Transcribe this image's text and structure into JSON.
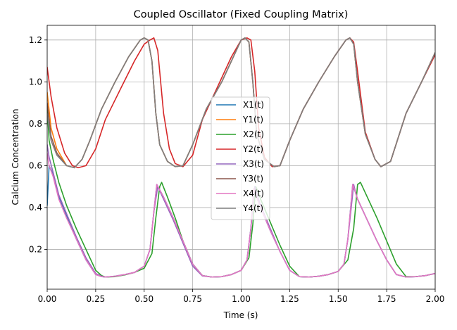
{
  "chart_data": {
    "type": "line",
    "title": "Coupled Oscillator (Fixed Coupling Matrix)",
    "xlabel": "Time (s)",
    "ylabel": "Calcium Concentration",
    "xlim": [
      0,
      2.0
    ],
    "ylim": [
      0.01,
      1.27
    ],
    "xticks": [
      0.0,
      0.25,
      0.5,
      0.75,
      1.0,
      1.25,
      1.5,
      1.75,
      2.0
    ],
    "xtick_labels": [
      "0.00",
      "0.25",
      "0.50",
      "0.75",
      "1.00",
      "1.25",
      "1.50",
      "1.75",
      "2.00"
    ],
    "yticks": [
      0.2,
      0.4,
      0.6,
      0.8,
      1.0,
      1.2
    ],
    "ytick_labels": [
      "0.2",
      "0.4",
      "0.6",
      "0.8",
      "1.0",
      "1.2"
    ],
    "grid": true,
    "legend_position": "center",
    "series": [
      {
        "name": "X1(t)",
        "color": "#1f77b4",
        "x": [
          0,
          0.01,
          0.03,
          0.06,
          0.1,
          0.15,
          0.2,
          0.25,
          0.28,
          0.3,
          0.35,
          0.4,
          0.45,
          0.5,
          0.53,
          0.55,
          0.565,
          0.6,
          0.65,
          0.7,
          0.75,
          0.8,
          0.85,
          0.9,
          0.95,
          1.0,
          1.03,
          1.05,
          1.065,
          1.075,
          1.1,
          1.15,
          1.2,
          1.25,
          1.3,
          1.35,
          1.4,
          1.45,
          1.5,
          1.53,
          1.55,
          1.575,
          1.59,
          1.6,
          1.65,
          1.7,
          1.75,
          1.8,
          1.85,
          1.9,
          1.95,
          2.0
        ],
        "y": [
          0.41,
          0.6,
          0.56,
          0.45,
          0.36,
          0.25,
          0.15,
          0.08,
          0.07,
          0.068,
          0.072,
          0.08,
          0.09,
          0.12,
          0.2,
          0.38,
          0.51,
          0.45,
          0.35,
          0.24,
          0.13,
          0.075,
          0.068,
          0.07,
          0.08,
          0.1,
          0.15,
          0.3,
          0.49,
          0.46,
          0.4,
          0.29,
          0.19,
          0.1,
          0.07,
          0.068,
          0.072,
          0.08,
          0.095,
          0.13,
          0.25,
          0.51,
          0.47,
          0.44,
          0.34,
          0.24,
          0.15,
          0.08,
          0.068,
          0.07,
          0.075,
          0.085
        ]
      },
      {
        "name": "Y1(t)",
        "color": "#ff7f0e",
        "x": [
          0,
          0.02,
          0.05,
          0.1,
          0.14,
          0.18,
          0.22,
          0.28,
          0.35,
          0.42,
          0.48,
          0.5,
          0.52,
          0.54,
          0.56,
          0.58,
          0.62,
          0.66,
          0.7,
          0.75,
          0.82,
          0.9,
          0.96,
          1.0,
          1.02,
          1.04,
          1.06,
          1.08,
          1.12,
          1.17,
          1.2,
          1.25,
          1.32,
          1.4,
          1.48,
          1.54,
          1.56,
          1.58,
          1.6,
          1.64,
          1.69,
          1.72,
          1.77,
          1.85,
          1.93,
          2.0
        ],
        "y": [
          0.95,
          0.78,
          0.68,
          0.6,
          0.59,
          0.63,
          0.72,
          0.87,
          1.0,
          1.12,
          1.2,
          1.21,
          1.2,
          1.1,
          0.85,
          0.7,
          0.62,
          0.595,
          0.6,
          0.7,
          0.87,
          1.0,
          1.12,
          1.2,
          1.21,
          1.19,
          1.0,
          0.75,
          0.63,
          0.595,
          0.6,
          0.72,
          0.87,
          1.0,
          1.12,
          1.2,
          1.21,
          1.18,
          1.0,
          0.75,
          0.63,
          0.595,
          0.62,
          0.85,
          1.0,
          1.14
        ]
      },
      {
        "name": "X2(t)",
        "color": "#2ca02c",
        "x": [
          0,
          0.01,
          0.03,
          0.06,
          0.1,
          0.15,
          0.2,
          0.25,
          0.28,
          0.3,
          0.35,
          0.4,
          0.45,
          0.5,
          0.54,
          0.56,
          0.58,
          0.59,
          0.62,
          0.66,
          0.7,
          0.75,
          0.8,
          0.85,
          0.9,
          0.95,
          1.0,
          1.04,
          1.06,
          1.075,
          1.085,
          1.1,
          1.15,
          1.2,
          1.25,
          1.3,
          1.35,
          1.4,
          1.45,
          1.5,
          1.55,
          1.58,
          1.6,
          1.615,
          1.65,
          1.7,
          1.75,
          1.8,
          1.85,
          1.9,
          1.95,
          2.0
        ],
        "y": [
          0.88,
          0.72,
          0.63,
          0.52,
          0.41,
          0.3,
          0.2,
          0.1,
          0.075,
          0.068,
          0.07,
          0.078,
          0.09,
          0.11,
          0.18,
          0.35,
          0.5,
          0.52,
          0.45,
          0.35,
          0.24,
          0.13,
          0.075,
          0.068,
          0.07,
          0.08,
          0.1,
          0.16,
          0.32,
          0.5,
          0.48,
          0.44,
          0.33,
          0.22,
          0.12,
          0.07,
          0.068,
          0.072,
          0.08,
          0.095,
          0.15,
          0.3,
          0.51,
          0.52,
          0.45,
          0.35,
          0.24,
          0.13,
          0.07,
          0.07,
          0.075,
          0.085
        ]
      },
      {
        "name": "Y2(t)",
        "color": "#d62728",
        "x": [
          0,
          0.02,
          0.05,
          0.09,
          0.13,
          0.16,
          0.2,
          0.25,
          0.3,
          0.38,
          0.45,
          0.5,
          0.53,
          0.55,
          0.57,
          0.6,
          0.63,
          0.66,
          0.7,
          0.75,
          0.8,
          0.88,
          0.95,
          1.0,
          1.03,
          1.05,
          1.07,
          1.09,
          1.12,
          1.16,
          1.2,
          1.25,
          1.32,
          1.4,
          1.48,
          1.54,
          1.56,
          1.58,
          1.6,
          1.64,
          1.69,
          1.72,
          1.77,
          1.85,
          1.93,
          2.0
        ],
        "y": [
          1.07,
          0.93,
          0.78,
          0.66,
          0.6,
          0.59,
          0.6,
          0.68,
          0.82,
          0.97,
          1.1,
          1.18,
          1.2,
          1.21,
          1.15,
          0.85,
          0.68,
          0.61,
          0.595,
          0.65,
          0.82,
          0.98,
          1.12,
          1.2,
          1.21,
          1.2,
          1.05,
          0.78,
          0.64,
          0.595,
          0.6,
          0.72,
          0.87,
          1.0,
          1.12,
          1.2,
          1.21,
          1.19,
          1.05,
          0.76,
          0.63,
          0.595,
          0.62,
          0.85,
          1.0,
          1.13
        ]
      },
      {
        "name": "X3(t)",
        "color": "#9467bd",
        "x": [
          0,
          0.01,
          0.03,
          0.06,
          0.1,
          0.15,
          0.2,
          0.25,
          0.28,
          0.3,
          0.35,
          0.4,
          0.45,
          0.5,
          0.53,
          0.55,
          0.57,
          0.6,
          0.65,
          0.7,
          0.75,
          0.8,
          0.85,
          0.9,
          0.95,
          1.0,
          1.03,
          1.05,
          1.07,
          1.08,
          1.1,
          1.15,
          1.2,
          1.25,
          1.3,
          1.35,
          1.4,
          1.45,
          1.5,
          1.53,
          1.55,
          1.58,
          1.59,
          1.6,
          1.65,
          1.7,
          1.75,
          1.8,
          1.85,
          1.9,
          1.95,
          2.0
        ],
        "y": [
          0.7,
          0.64,
          0.57,
          0.46,
          0.37,
          0.26,
          0.16,
          0.085,
          0.072,
          0.068,
          0.072,
          0.08,
          0.09,
          0.12,
          0.2,
          0.38,
          0.5,
          0.44,
          0.34,
          0.23,
          0.12,
          0.073,
          0.068,
          0.07,
          0.08,
          0.1,
          0.15,
          0.3,
          0.5,
          0.47,
          0.41,
          0.3,
          0.19,
          0.1,
          0.07,
          0.068,
          0.072,
          0.08,
          0.095,
          0.13,
          0.25,
          0.51,
          0.47,
          0.44,
          0.34,
          0.24,
          0.15,
          0.08,
          0.068,
          0.07,
          0.075,
          0.085
        ]
      },
      {
        "name": "Y3(t)",
        "color": "#8c564b",
        "x": [
          0,
          0.02,
          0.05,
          0.1,
          0.14,
          0.18,
          0.22,
          0.28,
          0.35,
          0.42,
          0.48,
          0.5,
          0.52,
          0.54,
          0.56,
          0.58,
          0.62,
          0.66,
          0.7,
          0.75,
          0.82,
          0.9,
          0.96,
          1.0,
          1.02,
          1.04,
          1.06,
          1.08,
          1.12,
          1.17,
          1.2,
          1.25,
          1.32,
          1.4,
          1.48,
          1.54,
          1.56,
          1.58,
          1.6,
          1.64,
          1.69,
          1.72,
          1.77,
          1.85,
          1.93,
          2.0
        ],
        "y": [
          0.9,
          0.74,
          0.66,
          0.6,
          0.59,
          0.63,
          0.72,
          0.87,
          1.0,
          1.12,
          1.2,
          1.21,
          1.2,
          1.1,
          0.85,
          0.7,
          0.62,
          0.595,
          0.6,
          0.7,
          0.87,
          1.0,
          1.12,
          1.2,
          1.21,
          1.19,
          1.0,
          0.75,
          0.63,
          0.595,
          0.6,
          0.72,
          0.87,
          1.0,
          1.12,
          1.2,
          1.21,
          1.18,
          1.0,
          0.75,
          0.63,
          0.595,
          0.62,
          0.85,
          1.0,
          1.14
        ]
      },
      {
        "name": "X4(t)",
        "color": "#e377c2",
        "x": [
          0,
          0.01,
          0.03,
          0.06,
          0.1,
          0.15,
          0.2,
          0.25,
          0.28,
          0.3,
          0.35,
          0.4,
          0.45,
          0.5,
          0.53,
          0.55,
          0.565,
          0.6,
          0.65,
          0.7,
          0.75,
          0.8,
          0.85,
          0.9,
          0.95,
          1.0,
          1.03,
          1.05,
          1.065,
          1.075,
          1.1,
          1.15,
          1.2,
          1.25,
          1.3,
          1.35,
          1.4,
          1.45,
          1.5,
          1.53,
          1.55,
          1.575,
          1.59,
          1.6,
          1.65,
          1.7,
          1.75,
          1.8,
          1.85,
          1.9,
          1.95,
          2.0
        ],
        "y": [
          0.66,
          0.6,
          0.55,
          0.44,
          0.35,
          0.25,
          0.15,
          0.08,
          0.07,
          0.068,
          0.072,
          0.08,
          0.09,
          0.12,
          0.2,
          0.38,
          0.51,
          0.45,
          0.35,
          0.24,
          0.13,
          0.075,
          0.068,
          0.07,
          0.08,
          0.1,
          0.15,
          0.3,
          0.49,
          0.46,
          0.4,
          0.29,
          0.19,
          0.1,
          0.07,
          0.068,
          0.072,
          0.08,
          0.095,
          0.13,
          0.25,
          0.51,
          0.47,
          0.44,
          0.34,
          0.24,
          0.15,
          0.08,
          0.068,
          0.07,
          0.075,
          0.085
        ]
      },
      {
        "name": "Y4(t)",
        "color": "#7f7f7f",
        "x": [
          0,
          0.02,
          0.05,
          0.1,
          0.14,
          0.18,
          0.22,
          0.28,
          0.35,
          0.42,
          0.48,
          0.5,
          0.52,
          0.54,
          0.56,
          0.58,
          0.62,
          0.66,
          0.7,
          0.75,
          0.82,
          0.9,
          0.96,
          1.0,
          1.02,
          1.04,
          1.06,
          1.08,
          1.12,
          1.17,
          1.2,
          1.25,
          1.32,
          1.4,
          1.48,
          1.54,
          1.56,
          1.58,
          1.6,
          1.64,
          1.69,
          1.72,
          1.77,
          1.85,
          1.93,
          2.0
        ],
        "y": [
          0.85,
          0.72,
          0.65,
          0.6,
          0.59,
          0.63,
          0.72,
          0.87,
          1.0,
          1.12,
          1.2,
          1.21,
          1.2,
          1.1,
          0.85,
          0.7,
          0.62,
          0.595,
          0.6,
          0.7,
          0.87,
          1.0,
          1.12,
          1.2,
          1.21,
          1.19,
          1.0,
          0.75,
          0.63,
          0.595,
          0.6,
          0.72,
          0.87,
          1.0,
          1.12,
          1.2,
          1.21,
          1.18,
          1.0,
          0.75,
          0.63,
          0.595,
          0.62,
          0.85,
          1.0,
          1.14
        ]
      }
    ]
  }
}
